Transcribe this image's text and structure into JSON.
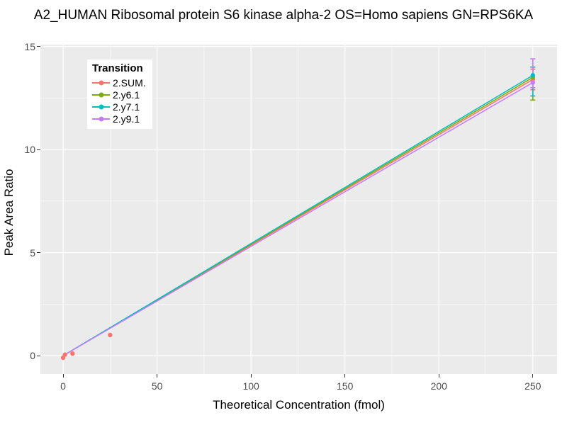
{
  "figure": {
    "title": "A2_HUMAN Ribosomal protein S6 kinase alpha-2 OS=Homo sapiens GN=RPS6KA",
    "x_axis_title": "Theoretical Concentration (fmol)",
    "y_axis_title": "Peak Area Ratio"
  },
  "legend": {
    "title": "Transition",
    "items": [
      {
        "label": "2.SUM.",
        "color": "#F8766D"
      },
      {
        "label": "2.y6.1",
        "color": "#7CAE00"
      },
      {
        "label": "2.y7.1",
        "color": "#00BFC4"
      },
      {
        "label": "2.y9.1",
        "color": "#C77CFF"
      }
    ]
  },
  "colors": {
    "panel_background": "#EBEBEB",
    "gridline": "#FFFFFF",
    "tick_label": "#4D4D4D",
    "tick_mark": "#333333",
    "title_text": "#000000"
  },
  "chart_data": {
    "type": "scatter",
    "title": "A2_HUMAN Ribosomal protein S6 kinase alpha-2 OS=Homo sapiens GN=RPS6KA",
    "xlabel": "Theoretical Concentration (fmol)",
    "ylabel": "Peak Area Ratio",
    "xlim": [
      -12.1,
      262.9
    ],
    "ylim": [
      -0.89,
      15.09
    ],
    "x_major_ticks": [
      0,
      50,
      100,
      150,
      200,
      250
    ],
    "x_tick_labels": [
      "0",
      "50",
      "100",
      "150",
      "200",
      "250"
    ],
    "x_minor_ticks": [
      25,
      75,
      125,
      175,
      225
    ],
    "y_major_ticks": [
      0,
      5,
      10,
      15
    ],
    "y_tick_labels": [
      "0",
      "5",
      "10",
      "15"
    ],
    "y_minor_ticks": [
      2.5,
      7.5,
      12.5
    ],
    "grid": true,
    "legend_position": "inside-top-left",
    "series": [
      {
        "name": "2.SUM.",
        "color": "#F8766D",
        "line": {
          "x": [
            0,
            250
          ],
          "y": [
            0,
            13.4
          ]
        },
        "points": [
          [
            0,
            -0.1
          ],
          [
            1,
            0.05
          ],
          [
            5,
            0.1
          ],
          [
            25,
            1.0
          ],
          [
            250,
            13.4
          ]
        ],
        "error_bar": {
          "x": 250,
          "low": 12.9,
          "high": 13.9
        }
      },
      {
        "name": "2.y6.1",
        "color": "#7CAE00",
        "line": {
          "x": [
            0,
            250
          ],
          "y": [
            0,
            13.5
          ]
        },
        "points": [
          [
            250,
            13.5
          ]
        ],
        "error_bar": {
          "x": 250,
          "low": 12.4,
          "high": 14.0
        }
      },
      {
        "name": "2.y7.1",
        "color": "#00BFC4",
        "line": {
          "x": [
            0,
            250
          ],
          "y": [
            0,
            13.6
          ]
        },
        "points": [
          [
            250,
            13.6
          ]
        ],
        "error_bar": {
          "x": 250,
          "low": 12.6,
          "high": 14.0
        }
      },
      {
        "name": "2.y9.1",
        "color": "#C77CFF",
        "line": {
          "x": [
            0,
            250
          ],
          "y": [
            0,
            13.25
          ]
        },
        "points": [
          [
            250,
            13.25
          ]
        ],
        "error_bar": {
          "x": 250,
          "low": 13.0,
          "high": 14.4
        }
      }
    ]
  }
}
